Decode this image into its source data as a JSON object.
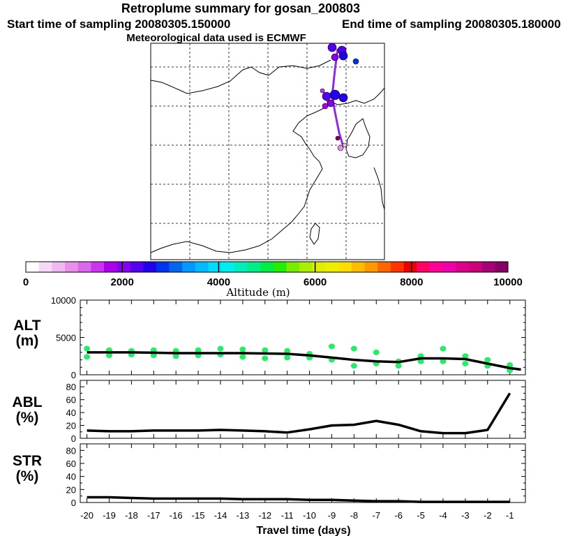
{
  "header": {
    "title": "Retroplume summary for gosan_200803",
    "start_time": "Start time of sampling 20080305.150000",
    "end_time": "End time of sampling 20080305.180000",
    "met_data": "Meteorological data used is ECMWF"
  },
  "colors": {
    "trajectory": "#8a2be2",
    "green_marks": "#22ee66",
    "line": "#000000",
    "grid": "#000000"
  },
  "colorbar": {
    "ticks": [
      "0",
      "2000",
      "4000",
      "6000",
      "8000",
      "10000"
    ],
    "label": "Altitude (m)",
    "colors": [
      "#ffffff",
      "#f8d8f8",
      "#f0b8f0",
      "#e890e8",
      "#dd66ee",
      "#cc33ee",
      "#aa00ee",
      "#8800ee",
      "#5500ee",
      "#2200ee",
      "#0033ee",
      "#0066ee",
      "#0099ff",
      "#00bbff",
      "#00ddff",
      "#00eeee",
      "#00eebb",
      "#00ee88",
      "#00ee44",
      "#22ee00",
      "#77ee00",
      "#aaee00",
      "#ddee00",
      "#eeee00",
      "#ffdd00",
      "#ffbb00",
      "#ff9900",
      "#ff6600",
      "#ff3300",
      "#ee0000",
      "#ff0066",
      "#ff0099",
      "#ee00aa",
      "#dd0088",
      "#cc0077",
      "#aa0077",
      "#880066"
    ]
  },
  "chart_data": [
    {
      "type": "line",
      "panel": "ALT",
      "ylabel": [
        "ALT",
        "(m)"
      ],
      "ylim": [
        0,
        10000
      ],
      "yticks": [
        "10000",
        "5000",
        "0"
      ],
      "x": [
        -20,
        -19,
        -18,
        -17,
        -16,
        -15,
        -14,
        -13,
        -12,
        -11,
        -10,
        -9,
        -8,
        -7,
        -6,
        -5,
        -4,
        -3,
        -2,
        -1,
        -0.5
      ],
      "values": [
        3000,
        3000,
        3000,
        2950,
        2900,
        2900,
        2900,
        2900,
        2850,
        2800,
        2600,
        2300,
        2000,
        1800,
        1700,
        2200,
        2200,
        2100,
        1500,
        900,
        700
      ],
      "scatter_x": [
        -20,
        -20,
        -19,
        -19,
        -18,
        -18,
        -17,
        -17,
        -16,
        -16,
        -15,
        -15,
        -14,
        -14,
        -13,
        -13,
        -12,
        -12,
        -11,
        -11,
        -10,
        -10,
        -9,
        -9,
        -8,
        -8,
        -7,
        -7,
        -6,
        -6,
        -5,
        -5,
        -4,
        -4,
        -3,
        -3,
        -2,
        -2,
        -1,
        -1
      ],
      "scatter_y": [
        3500,
        2400,
        3300,
        2600,
        3200,
        2700,
        3300,
        2600,
        3200,
        2500,
        3300,
        2600,
        3500,
        2700,
        3400,
        2400,
        3300,
        2200,
        3200,
        2300,
        2800,
        2300,
        3800,
        2000,
        3500,
        1200,
        3000,
        1500,
        1800,
        1200,
        2500,
        1800,
        3500,
        1800,
        2500,
        1500,
        2000,
        1200,
        1300,
        600
      ],
      "series_name": "Altitude (m)"
    },
    {
      "type": "line",
      "panel": "ABL",
      "ylabel": [
        "ABL",
        "(%)"
      ],
      "ylim": [
        0,
        90
      ],
      "yticks": [
        "80",
        "60",
        "40",
        "20",
        "0"
      ],
      "x": [
        -20,
        -19,
        -18,
        -17,
        -16,
        -15,
        -14,
        -13,
        -12,
        -11,
        -10,
        -9,
        -8,
        -7,
        -6,
        -5,
        -4,
        -3,
        -2,
        -1
      ],
      "values": [
        12,
        11,
        11,
        12,
        12,
        12,
        13,
        12,
        11,
        9,
        14,
        20,
        21,
        27,
        21,
        11,
        8,
        8,
        13,
        70
      ],
      "series_name": "ABL (%)"
    },
    {
      "type": "line",
      "panel": "STR",
      "ylabel": [
        "STR",
        "(%)"
      ],
      "ylim": [
        0,
        90
      ],
      "yticks": [
        "80",
        "60",
        "40",
        "20",
        "0"
      ],
      "x": [
        -20,
        -19,
        -18,
        -17,
        -16,
        -15,
        -14,
        -13,
        -12,
        -11,
        -10,
        -9,
        -8,
        -7,
        -6,
        -5,
        -4,
        -3,
        -2,
        -1
      ],
      "values": [
        8,
        8,
        7,
        6,
        6,
        6,
        6,
        5,
        5,
        5,
        4,
        4,
        3,
        2,
        2,
        1,
        1,
        1,
        1,
        1
      ],
      "series_name": "STR (%)"
    }
  ],
  "xaxis": {
    "ticks": [
      "-20",
      "-19",
      "-18",
      "-17",
      "-16",
      "-15",
      "-14",
      "-13",
      "-12",
      "-11",
      "-10",
      "-9",
      "-8",
      "-7",
      "-6",
      "-5",
      "-4",
      "-3",
      "-2",
      "-1"
    ],
    "label": "Travel time (days)"
  }
}
